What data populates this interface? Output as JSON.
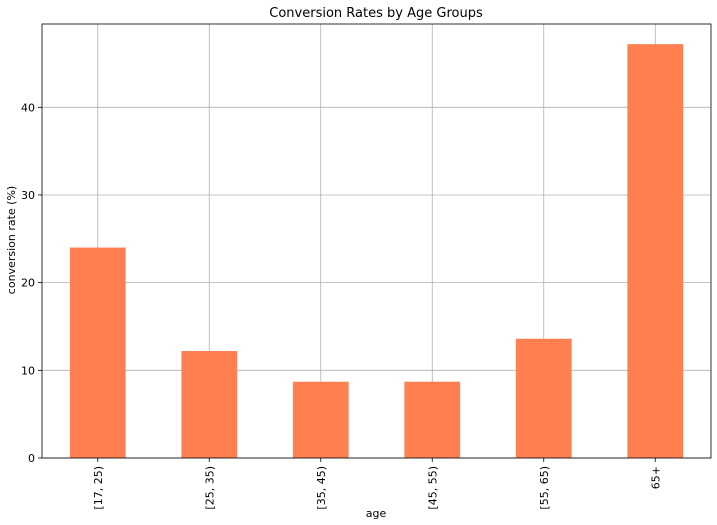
{
  "chart_data": {
    "type": "bar",
    "title": "Conversion Rates by Age Groups",
    "xlabel": "age",
    "ylabel": "conversion rate (%)",
    "categories": [
      "[17, 25)",
      "[25, 35)",
      "[35, 45)",
      "[45, 55)",
      "[55, 65)",
      "65+"
    ],
    "values": [
      24.0,
      12.2,
      8.7,
      8.7,
      13.6,
      47.2
    ],
    "ylim": [
      0,
      49.5
    ],
    "yticks": [
      0,
      10,
      20,
      30,
      40
    ],
    "grid": true,
    "bar_color": "#ff7f50"
  }
}
